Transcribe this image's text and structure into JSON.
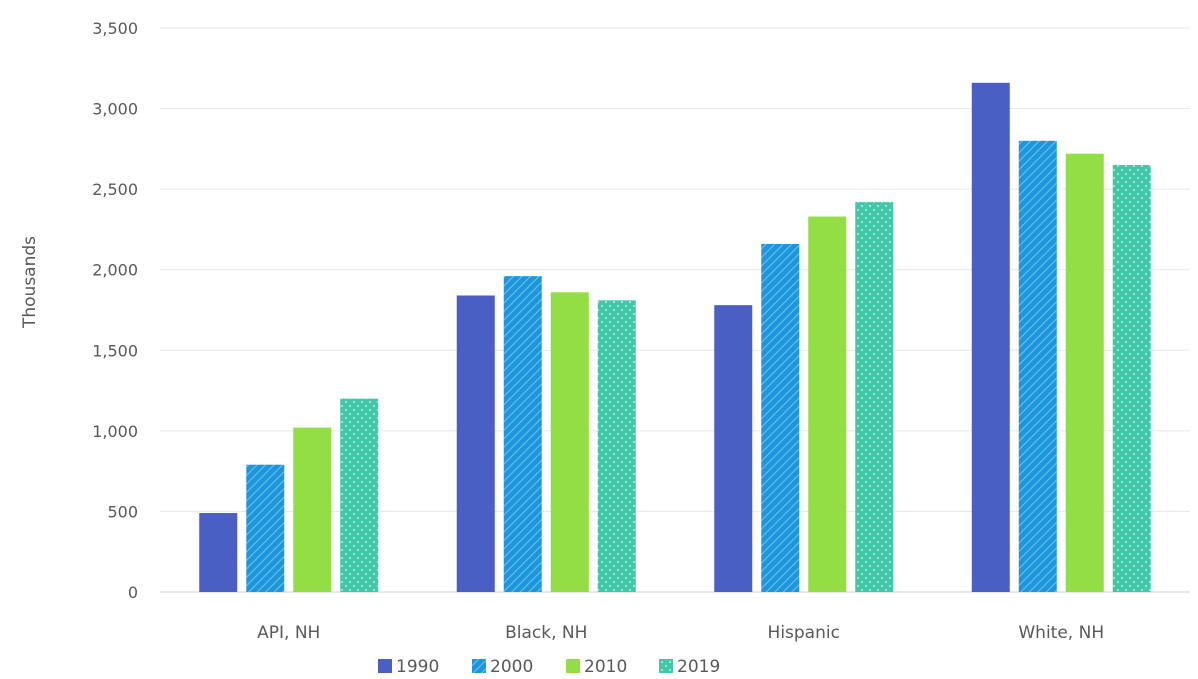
{
  "chart_data": {
    "type": "bar",
    "title": "",
    "xlabel": "",
    "ylabel": "Thousands",
    "ylim": [
      0,
      3500
    ],
    "yticks": [
      0,
      500,
      1000,
      1500,
      2000,
      2500,
      3000,
      3500
    ],
    "ytick_labels": [
      "0",
      "500",
      "1,000",
      "1,500",
      "2,000",
      "2,500",
      "3,000",
      "3,500"
    ],
    "categories": [
      "API, NH",
      "Black, NH",
      "Hispanic",
      "White, NH"
    ],
    "series": [
      {
        "name": "1990",
        "color": "#4a5fc4",
        "pattern": "solid",
        "values": [
          490,
          1840,
          1780,
          3160
        ]
      },
      {
        "name": "2000",
        "color": "#1d96dc",
        "pattern": "hatch",
        "values": [
          790,
          1960,
          2160,
          2800
        ]
      },
      {
        "name": "2010",
        "color": "#92de44",
        "pattern": "solid",
        "values": [
          1020,
          1860,
          2330,
          2720
        ]
      },
      {
        "name": "2019",
        "color": "#41c8a8",
        "pattern": "dots",
        "values": [
          1200,
          1810,
          2420,
          2650
        ]
      }
    ],
    "grid": true,
    "legend_position": "bottom"
  }
}
